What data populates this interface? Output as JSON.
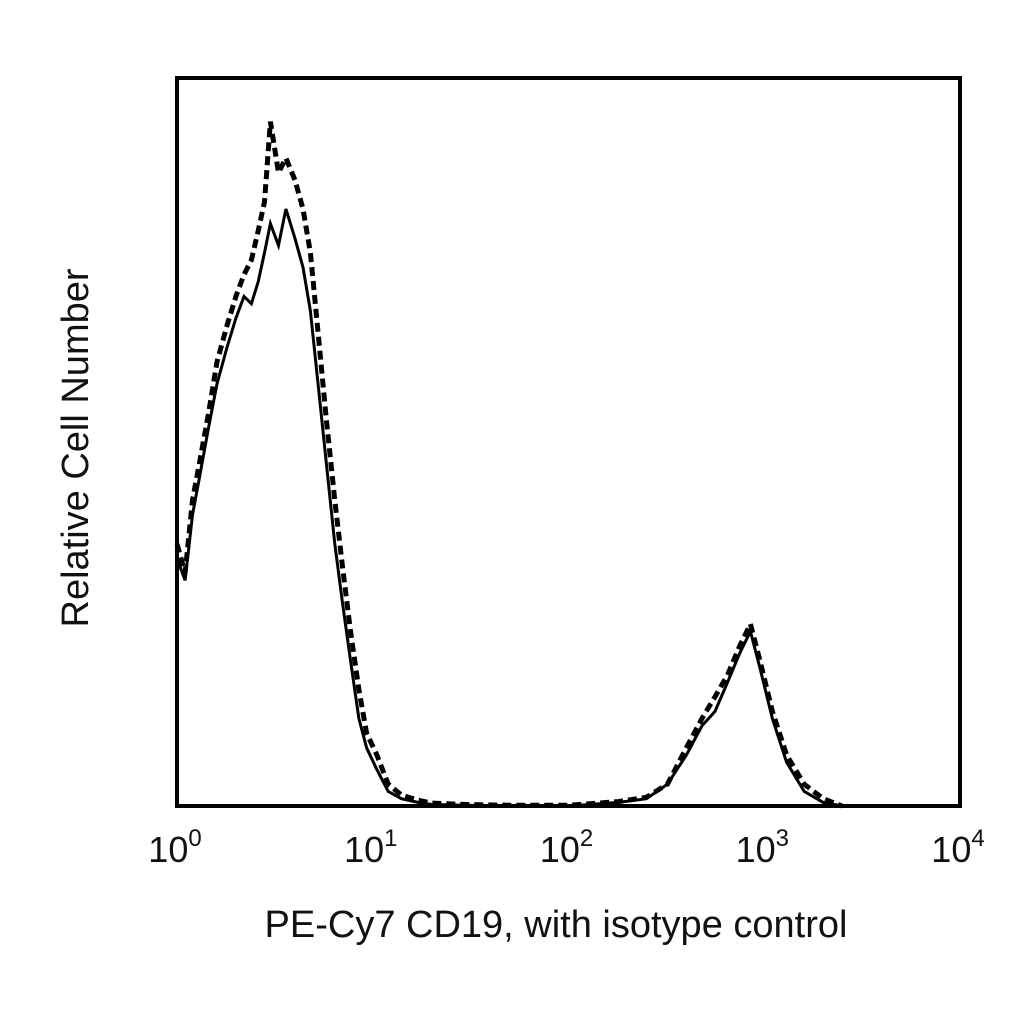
{
  "chart_data": {
    "type": "histogram",
    "title": "",
    "xlabel": "PE-Cy7 CD19, with isotype control",
    "ylabel": "Relative Cell Number",
    "x_scale": "log",
    "xlim": [
      1,
      10000
    ],
    "ylim": [
      0,
      1.0
    ],
    "grid": false,
    "legend": "none",
    "x_ticks": [
      {
        "base": "10",
        "exp": "0",
        "value": 1
      },
      {
        "base": "10",
        "exp": "1",
        "value": 10
      },
      {
        "base": "10",
        "exp": "2",
        "value": 100
      },
      {
        "base": "10",
        "exp": "3",
        "value": 1000
      },
      {
        "base": "10",
        "exp": "4",
        "value": 10000
      }
    ],
    "series": [
      {
        "style": "solid",
        "color": "#000000",
        "x": [
          1.0,
          1.1,
          1.2,
          1.3,
          1.45,
          1.6,
          1.8,
          2.0,
          2.2,
          2.4,
          2.6,
          2.8,
          3.0,
          3.3,
          3.6,
          4.0,
          4.4,
          4.8,
          5.3,
          5.8,
          6.4,
          7.0,
          7.7,
          8.5,
          9.3,
          10.5,
          12.0,
          14.0,
          17.0,
          20.0,
          30.0,
          50.0,
          100.0,
          180.0,
          250.0,
          320.0,
          400.0,
          480.0,
          560.0,
          650.0,
          750.0,
          850.0,
          950.0,
          1100.0,
          1300.0,
          1600.0,
          2000.0,
          2500.0
        ],
        "values": [
          0.34,
          0.31,
          0.4,
          0.45,
          0.52,
          0.58,
          0.63,
          0.67,
          0.7,
          0.69,
          0.72,
          0.76,
          0.8,
          0.77,
          0.82,
          0.78,
          0.74,
          0.68,
          0.57,
          0.47,
          0.36,
          0.28,
          0.2,
          0.12,
          0.08,
          0.05,
          0.02,
          0.01,
          0.005,
          0.002,
          0.001,
          0.0,
          0.0,
          0.005,
          0.01,
          0.03,
          0.07,
          0.11,
          0.13,
          0.17,
          0.21,
          0.24,
          0.19,
          0.12,
          0.06,
          0.02,
          0.005,
          0.0
        ]
      },
      {
        "style": "dashed",
        "color": "#000000",
        "x": [
          1.0,
          1.1,
          1.2,
          1.3,
          1.45,
          1.6,
          1.8,
          2.0,
          2.2,
          2.4,
          2.6,
          2.8,
          3.0,
          3.3,
          3.6,
          4.0,
          4.4,
          4.8,
          5.3,
          5.8,
          6.4,
          7.0,
          7.7,
          8.5,
          9.3,
          10.5,
          12.0,
          14.0,
          17.0,
          20.0,
          30.0,
          50.0,
          100.0,
          180.0,
          250.0,
          320.0,
          400.0,
          480.0,
          560.0,
          650.0,
          750.0,
          850.0,
          950.0,
          1100.0,
          1300.0,
          1600.0,
          2000.0,
          2500.0
        ],
        "values": [
          0.36,
          0.32,
          0.42,
          0.47,
          0.54,
          0.61,
          0.66,
          0.7,
          0.73,
          0.75,
          0.79,
          0.83,
          0.94,
          0.87,
          0.89,
          0.86,
          0.82,
          0.76,
          0.64,
          0.53,
          0.42,
          0.33,
          0.24,
          0.16,
          0.1,
          0.07,
          0.03,
          0.015,
          0.008,
          0.004,
          0.002,
          0.001,
          0.001,
          0.006,
          0.012,
          0.03,
          0.08,
          0.12,
          0.15,
          0.18,
          0.22,
          0.25,
          0.2,
          0.13,
          0.07,
          0.03,
          0.01,
          0.0
        ]
      }
    ]
  }
}
